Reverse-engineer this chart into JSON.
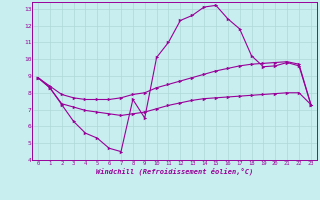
{
  "bg_color": "#c8eef0",
  "line_color": "#990099",
  "grid_color": "#b0d8d8",
  "xlabel": "Windchill (Refroidissement éolien,°C)",
  "xlim": [
    -0.5,
    23.5
  ],
  "ylim": [
    4,
    13.4
  ],
  "xticks": [
    0,
    1,
    2,
    3,
    4,
    5,
    6,
    7,
    8,
    9,
    10,
    11,
    12,
    13,
    14,
    15,
    16,
    17,
    18,
    19,
    20,
    21,
    22,
    23
  ],
  "yticks": [
    4,
    5,
    6,
    7,
    8,
    9,
    10,
    11,
    12,
    13
  ],
  "line1_x": [
    0,
    1,
    2,
    3,
    4,
    5,
    6,
    7,
    8,
    9,
    10,
    11,
    12,
    13,
    14,
    15,
    16,
    17,
    18,
    19,
    20,
    21,
    22,
    23
  ],
  "line1_y": [
    8.9,
    8.3,
    7.3,
    6.3,
    5.6,
    5.3,
    4.7,
    4.5,
    7.6,
    6.5,
    10.1,
    11.0,
    12.3,
    12.6,
    13.1,
    13.2,
    12.4,
    11.8,
    10.2,
    9.55,
    9.6,
    9.8,
    9.6,
    7.3
  ],
  "line2_x": [
    0,
    1,
    2,
    3,
    4,
    5,
    6,
    7,
    8,
    9,
    10,
    11,
    12,
    13,
    14,
    15,
    16,
    17,
    18,
    19,
    20,
    21,
    22,
    23
  ],
  "line2_y": [
    8.9,
    8.4,
    7.9,
    7.7,
    7.6,
    7.6,
    7.6,
    7.7,
    7.9,
    8.0,
    8.3,
    8.5,
    8.7,
    8.9,
    9.1,
    9.3,
    9.45,
    9.6,
    9.7,
    9.75,
    9.8,
    9.85,
    9.7,
    7.3
  ],
  "line3_x": [
    0,
    1,
    2,
    3,
    4,
    5,
    6,
    7,
    8,
    9,
    10,
    11,
    12,
    13,
    14,
    15,
    16,
    17,
    18,
    19,
    20,
    21,
    22,
    23
  ],
  "line3_y": [
    8.9,
    8.3,
    7.35,
    7.15,
    6.95,
    6.85,
    6.75,
    6.65,
    6.75,
    6.85,
    7.05,
    7.25,
    7.4,
    7.55,
    7.65,
    7.7,
    7.75,
    7.8,
    7.85,
    7.9,
    7.95,
    8.0,
    8.0,
    7.3
  ]
}
